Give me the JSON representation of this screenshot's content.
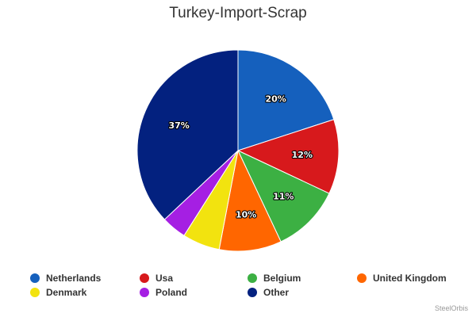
{
  "chart_data": {
    "type": "pie",
    "title": "Turkey-Import-Scrap",
    "slices": [
      {
        "name": "Netherlands",
        "value": 20,
        "label": "20%",
        "color": "#1560bd"
      },
      {
        "name": "Usa",
        "value": 12,
        "label": "12%",
        "color": "#d7191c"
      },
      {
        "name": "Belgium",
        "value": 11,
        "label": "11%",
        "color": "#3cb043"
      },
      {
        "name": "United Kingdom",
        "value": 10,
        "label": "10%",
        "color": "#ff6600"
      },
      {
        "name": "Denmark",
        "value": 6,
        "label": "",
        "color": "#f2e30f"
      },
      {
        "name": "Poland",
        "value": 4,
        "label": "",
        "color": "#a51fe3"
      },
      {
        "name": "Other",
        "value": 37,
        "label": "37%",
        "color": "#03217f"
      }
    ],
    "legend_position": "bottom"
  },
  "credit": "SteelOrbis"
}
